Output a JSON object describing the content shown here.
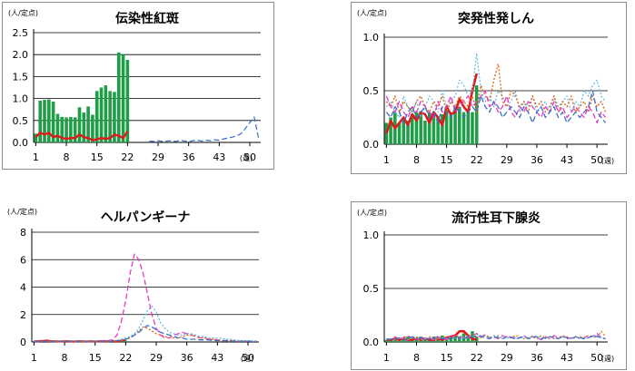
{
  "chart_data": [
    {
      "type": "line",
      "title": "伝染性紅斑",
      "y_unit_label": "(人/定点)",
      "x_unit_label": "(週)",
      "boxed": true,
      "ylim": [
        0,
        2.5
      ],
      "yticks": [
        "0.0",
        "0.5",
        "1.0",
        "1.5",
        "2.0",
        "2.5"
      ],
      "xticks": [
        "1",
        "8",
        "15",
        "22",
        "29",
        "36",
        "43",
        "50"
      ],
      "grid": true,
      "bars": {
        "name": "current_bars",
        "color": "#1e9e47",
        "values": [
          0.2,
          0.95,
          0.97,
          0.98,
          0.93,
          0.65,
          0.58,
          0.57,
          0.58,
          0.57,
          0.8,
          0.68,
          0.82,
          0.63,
          1.17,
          1.25,
          1.3,
          1.17,
          1.15,
          2.05,
          2.0,
          1.88
        ]
      },
      "series": [
        {
          "color": "#e01a1a",
          "style": "solid",
          "width": 2.4,
          "values": [
            0.12,
            0.22,
            0.18,
            0.22,
            0.12,
            0.15,
            0.1,
            0.08,
            0.1,
            0.1,
            0.18,
            0.12,
            0.1,
            0.05,
            0.07,
            0.1,
            0.08,
            0.1,
            0.18,
            0.15,
            0.1,
            0.25
          ]
        },
        {
          "color": "#3a6fc4",
          "style": "dash",
          "width": 1.2,
          "values": [
            null,
            null,
            null,
            null,
            null,
            null,
            null,
            null,
            null,
            null,
            null,
            null,
            null,
            null,
            null,
            null,
            null,
            null,
            null,
            null,
            null,
            null,
            null,
            null,
            null,
            null,
            0.03,
            0.02,
            0.04,
            0.02,
            0.03,
            0.04,
            0.02,
            0.05,
            0.03,
            0.02,
            0.04,
            0.05,
            0.03,
            0.05,
            0.04,
            0.06,
            0.05,
            0.08,
            0.1,
            0.12,
            0.15,
            0.2,
            0.32,
            0.45,
            0.58,
            0.1
          ]
        }
      ]
    },
    {
      "type": "line",
      "title": "突発性発しん",
      "y_unit_label": "(人/定点)",
      "x_unit_label": "(週)",
      "boxed": true,
      "ylim": [
        0,
        1.0
      ],
      "yticks": [
        "0.0",
        "0.5",
        "1.0"
      ],
      "xticks": [
        "1",
        "8",
        "15",
        "22",
        "29",
        "36",
        "43",
        "50"
      ],
      "grid": true,
      "bars": {
        "name": "current_bars",
        "color": "#1e9e47",
        "values": [
          0.2,
          0.25,
          0.3,
          0.2,
          0.25,
          0.22,
          0.28,
          0.3,
          0.3,
          0.22,
          0.3,
          0.28,
          0.25,
          0.28,
          0.35,
          0.3,
          0.32,
          0.35,
          0.3,
          0.32,
          0.3,
          0.55
        ]
      },
      "series": [
        {
          "color": "#e01a1a",
          "style": "solid",
          "width": 2.6,
          "values": [
            0.1,
            0.22,
            0.15,
            0.2,
            0.25,
            0.18,
            0.28,
            0.22,
            0.3,
            0.28,
            0.2,
            0.3,
            0.25,
            0.18,
            0.35,
            0.28,
            0.3,
            0.42,
            0.35,
            0.3,
            0.5,
            0.66
          ]
        },
        {
          "color": "#5bb8e8",
          "style": "dot",
          "width": 1.2,
          "values": [
            0.35,
            0.4,
            0.3,
            0.25,
            0.45,
            0.35,
            0.3,
            0.4,
            0.25,
            0.35,
            0.45,
            0.4,
            0.3,
            0.5,
            0.35,
            0.4,
            0.45,
            0.6,
            0.55,
            0.45,
            0.5,
            0.85,
            0.5,
            0.4,
            0.45,
            0.35,
            0.5,
            0.45,
            0.35,
            0.4,
            0.5,
            0.3,
            0.4,
            0.35,
            0.45,
            0.3,
            0.35,
            0.4,
            0.3,
            0.45,
            0.35,
            0.4,
            0.45,
            0.3,
            0.4,
            0.35,
            0.5,
            0.45,
            0.55,
            0.6,
            0.45,
            0.4
          ]
        },
        {
          "color": "#e36c1a",
          "style": "dot",
          "width": 1.4,
          "values": [
            0.4,
            0.35,
            0.45,
            0.3,
            0.4,
            0.35,
            0.3,
            0.4,
            0.45,
            0.35,
            0.3,
            0.4,
            0.35,
            0.45,
            0.3,
            0.4,
            0.35,
            0.45,
            0.4,
            0.35,
            0.45,
            0.3,
            0.55,
            0.45,
            0.4,
            0.6,
            0.75,
            0.4,
            0.35,
            0.5,
            0.45,
            0.35,
            0.4,
            0.3,
            0.45,
            0.35,
            0.4,
            0.3,
            0.35,
            0.45,
            0.3,
            0.4,
            0.35,
            0.45,
            0.3,
            0.35,
            0.4,
            0.3,
            0.45,
            0.35,
            0.4,
            0.3
          ]
        },
        {
          "color": "#e838c4",
          "style": "dash",
          "width": 1.3,
          "values": [
            0.45,
            0.35,
            0.3,
            0.4,
            0.3,
            0.25,
            0.35,
            0.3,
            0.4,
            0.35,
            0.3,
            0.25,
            0.4,
            0.3,
            0.35,
            0.45,
            0.3,
            0.35,
            0.4,
            0.45,
            0.35,
            0.4,
            0.45,
            0.5,
            0.35,
            0.4,
            0.3,
            0.35,
            0.45,
            0.3,
            0.25,
            0.35,
            0.3,
            0.4,
            0.35,
            0.3,
            0.25,
            0.35,
            0.3,
            0.4,
            0.3,
            0.35,
            0.25,
            0.3,
            0.35,
            0.3,
            0.25,
            0.35,
            0.3,
            0.2,
            0.3,
            0.25
          ]
        },
        {
          "color": "#3a6fc4",
          "style": "dash",
          "width": 1.3,
          "values": [
            0.3,
            0.25,
            0.35,
            0.3,
            0.2,
            0.3,
            0.35,
            0.25,
            0.3,
            0.35,
            0.25,
            0.3,
            0.2,
            0.35,
            0.3,
            0.25,
            0.35,
            0.3,
            0.25,
            0.3,
            0.35,
            0.3,
            0.45,
            0.35,
            0.3,
            0.4,
            0.35,
            0.25,
            0.3,
            0.35,
            0.3,
            0.25,
            0.35,
            0.3,
            0.2,
            0.3,
            0.35,
            0.25,
            0.3,
            0.35,
            0.25,
            0.3,
            0.2,
            0.25,
            0.3,
            0.25,
            0.3,
            0.35,
            0.5,
            0.3,
            0.25,
            0.2
          ]
        }
      ]
    },
    {
      "type": "line",
      "title": "ヘルパンギーナ",
      "y_unit_label": "(人/定点)",
      "x_unit_label": "(週)",
      "boxed": false,
      "ylim": [
        0,
        8
      ],
      "yticks": [
        "0",
        "2",
        "4",
        "6",
        "8"
      ],
      "xticks": [
        "1",
        "8",
        "15",
        "22",
        "29",
        "36",
        "43",
        "50"
      ],
      "grid": true,
      "bars": {
        "name": "current_bars",
        "color": "#1e9e47",
        "values": [
          0,
          0,
          0.02,
          0,
          0,
          0.02,
          0,
          0,
          0,
          0,
          0,
          0,
          0,
          0,
          0,
          0,
          0,
          0,
          0.02,
          0.03,
          0.05,
          0.1
        ]
      },
      "series": [
        {
          "color": "#e01a1a",
          "style": "solid",
          "width": 2.2,
          "values": [
            0.05,
            0.05,
            0.08,
            0.1,
            0.05,
            0.05,
            0.03,
            0.05,
            0.05,
            0.03,
            0.05,
            0.05,
            0.03,
            0.05,
            0.03,
            0.05,
            0.05,
            0.05,
            0.08,
            0.05,
            0.1,
            0.15
          ]
        },
        {
          "color": "#e838c4",
          "style": "dash",
          "width": 1.3,
          "values": [
            0.05,
            0.05,
            0.05,
            0.03,
            0.05,
            0.05,
            0.03,
            0.05,
            0.05,
            0.05,
            0.05,
            0.05,
            0.05,
            0.05,
            0.05,
            0.08,
            0.1,
            0.1,
            0.15,
            0.5,
            1.5,
            3.0,
            5.0,
            6.4,
            6.0,
            5.0,
            3.5,
            2.0,
            1.0,
            0.5,
            0.3,
            0.3,
            0.5,
            0.6,
            0.7,
            0.6,
            0.5,
            0.4,
            0.3,
            0.3,
            0.2,
            0.2,
            0.15,
            0.1,
            0.1,
            0.1,
            0.05,
            0.05,
            0.05,
            0.05,
            0.05,
            0.05
          ]
        },
        {
          "color": "#5bb8e8",
          "style": "dot",
          "width": 1.3,
          "values": [
            0.05,
            0.03,
            0.05,
            0.05,
            0.05,
            0.05,
            0.05,
            0.05,
            0.05,
            0.05,
            0.05,
            0.05,
            0.05,
            0.05,
            0.05,
            0.05,
            0.05,
            0.05,
            0.1,
            0.1,
            0.2,
            0.3,
            0.4,
            0.6,
            1.0,
            1.6,
            2.3,
            2.6,
            2.2,
            1.4,
            1.0,
            0.7,
            0.6,
            0.5,
            0.5,
            0.6,
            0.6,
            0.5,
            0.4,
            0.4,
            0.3,
            0.3,
            0.3,
            0.25,
            0.2,
            0.2,
            0.15,
            0.1,
            0.1,
            0.1,
            0.05,
            0.05
          ]
        },
        {
          "color": "#e36c1a",
          "style": "dot",
          "width": 1.4,
          "values": [
            0.05,
            0.05,
            0.05,
            0.05,
            0.05,
            0.05,
            0.05,
            0.05,
            0.05,
            0.05,
            0.05,
            0.05,
            0.05,
            0.05,
            0.05,
            0.05,
            0.05,
            0.05,
            0.05,
            0.1,
            0.1,
            0.2,
            0.3,
            0.5,
            0.8,
            1.1,
            1.0,
            0.8,
            0.6,
            0.5,
            0.4,
            0.3,
            0.3,
            0.3,
            0.4,
            0.5,
            0.5,
            0.4,
            0.3,
            0.3,
            0.2,
            0.2,
            0.15,
            0.1,
            0.1,
            0.1,
            0.05,
            0.05,
            0.05,
            0.05,
            0.05,
            0.05
          ]
        },
        {
          "color": "#3a6fc4",
          "style": "dash",
          "width": 1.3,
          "values": [
            0.05,
            0.05,
            0.05,
            0.05,
            0.05,
            0.05,
            0.05,
            0.05,
            0.05,
            0.05,
            0.05,
            0.05,
            0.05,
            0.05,
            0.05,
            0.05,
            0.05,
            0.05,
            0.05,
            0.1,
            0.1,
            0.2,
            0.3,
            0.5,
            0.7,
            1.0,
            1.2,
            1.1,
            0.9,
            0.7,
            0.6,
            0.5,
            0.4,
            0.3,
            0.3,
            0.2,
            0.2,
            0.2,
            0.15,
            0.15,
            0.15,
            0.1,
            0.1,
            0.1,
            0.1,
            0.05,
            0.05,
            0.05,
            0.05,
            0.05,
            0.05,
            0.05
          ]
        }
      ]
    },
    {
      "type": "line",
      "title": "流行性耳下腺炎",
      "y_unit_label": "(人/定点)",
      "x_unit_label": "(週)",
      "boxed": true,
      "ylim": [
        0,
        1.0
      ],
      "yticks": [
        "0.0",
        "0.5",
        "1.0"
      ],
      "xticks": [
        "1",
        "8",
        "15",
        "22",
        "29",
        "36",
        "43",
        "50"
      ],
      "grid": true,
      "bars": {
        "name": "current_bars",
        "color": "#1e9e47",
        "values": [
          0.02,
          0.03,
          0.04,
          0.03,
          0.02,
          0.05,
          0.04,
          0.03,
          0.05,
          0.04,
          0.03,
          0.05,
          0.04,
          0.06,
          0.04,
          0.05,
          0.06,
          0.05,
          0.08,
          0.06,
          0.1,
          0.05
        ]
      },
      "series": [
        {
          "color": "#e01a1a",
          "style": "solid",
          "width": 2.6,
          "values": [
            0.02,
            0.02,
            0.03,
            0.02,
            0.03,
            0.02,
            0.02,
            0.03,
            0.02,
            0.03,
            0.02,
            0.02,
            0.03,
            0.02,
            0.04,
            0.05,
            0.06,
            0.1,
            0.1,
            0.06,
            0.03,
            0.02
          ]
        },
        {
          "color": "#e838c4",
          "style": "dash",
          "width": 1.2,
          "values": [
            0.02,
            0.03,
            0.05,
            0.02,
            0.04,
            0.06,
            0.03,
            0.02,
            0.05,
            0.03,
            0.04,
            0.02,
            0.05,
            0.03,
            0.02,
            0.04,
            0.06,
            0.03,
            0.05,
            0.04,
            0.06,
            0.08,
            0.05,
            0.07,
            0.04,
            0.05,
            0.03,
            0.06,
            0.04,
            0.05,
            0.03,
            0.04,
            0.06,
            0.03,
            0.05,
            0.04,
            0.02,
            0.05,
            0.03,
            0.06,
            0.04,
            0.05,
            0.03,
            0.04,
            0.05,
            0.03,
            0.04,
            0.06,
            0.05,
            0.08,
            0.04,
            0.03
          ]
        },
        {
          "color": "#e36c1a",
          "style": "dot",
          "width": 1.2,
          "values": [
            0.03,
            0.02,
            0.04,
            0.03,
            0.05,
            0.02,
            0.04,
            0.05,
            0.03,
            0.02,
            0.05,
            0.04,
            0.03,
            0.05,
            0.04,
            0.03,
            0.05,
            0.06,
            0.04,
            0.05,
            0.07,
            0.05,
            0.04,
            0.06,
            0.05,
            0.04,
            0.06,
            0.03,
            0.05,
            0.04,
            0.06,
            0.05,
            0.03,
            0.04,
            0.05,
            0.03,
            0.06,
            0.04,
            0.05,
            0.03,
            0.04,
            0.06,
            0.05,
            0.03,
            0.04,
            0.05,
            0.04,
            0.06,
            0.05,
            0.04,
            0.1,
            0.05
          ]
        },
        {
          "color": "#5bb8e8",
          "style": "dot",
          "width": 1.2,
          "values": [
            0.02,
            0.03,
            0.02,
            0.04,
            0.03,
            0.02,
            0.04,
            0.03,
            0.02,
            0.03,
            0.04,
            0.02,
            0.03,
            0.04,
            0.03,
            0.05,
            0.04,
            0.05,
            0.04,
            0.06,
            0.05,
            0.07,
            0.06,
            0.05,
            0.04,
            0.06,
            0.05,
            0.04,
            0.03,
            0.05,
            0.04,
            0.03,
            0.05,
            0.04,
            0.06,
            0.05,
            0.04,
            0.03,
            0.05,
            0.04,
            0.03,
            0.05,
            0.04,
            0.03,
            0.04,
            0.05,
            0.03,
            0.04,
            0.05,
            0.06,
            0.04,
            0.03
          ]
        },
        {
          "color": "#3a6fc4",
          "style": "dash",
          "width": 1.2,
          "values": [
            0.03,
            0.02,
            0.03,
            0.04,
            0.02,
            0.03,
            0.05,
            0.03,
            0.04,
            0.02,
            0.03,
            0.04,
            0.05,
            0.03,
            0.04,
            0.03,
            0.05,
            0.04,
            0.03,
            0.05,
            0.04,
            0.06,
            0.05,
            0.04,
            0.03,
            0.05,
            0.04,
            0.03,
            0.05,
            0.04,
            0.03,
            0.04,
            0.05,
            0.03,
            0.04,
            0.05,
            0.03,
            0.04,
            0.05,
            0.04,
            0.03,
            0.05,
            0.04,
            0.03,
            0.05,
            0.04,
            0.03,
            0.04,
            0.06,
            0.05,
            0.04,
            0.03
          ]
        }
      ]
    }
  ]
}
